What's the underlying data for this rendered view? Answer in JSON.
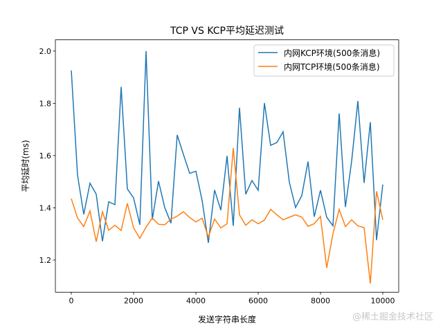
{
  "chart_data": {
    "type": "line",
    "title": "TCP VS KCP平均延迟测试",
    "xlabel": "发送字符串长度",
    "ylabel": "平均延时(ms)",
    "xlim": [
      -511,
      10511
    ],
    "ylim": [
      1.077,
      2.043
    ],
    "xticks": [
      0,
      2000,
      4000,
      6000,
      8000,
      10000
    ],
    "yticks": [
      1.2,
      1.4,
      1.6,
      1.8,
      2.0
    ],
    "ytick_labels": [
      "1.2",
      "1.4",
      "1.6",
      "1.8",
      "2.0"
    ],
    "grid": false,
    "legend_position": "top-right",
    "x": [
      0,
      200,
      400,
      600,
      800,
      1000,
      1200,
      1400,
      1600,
      1800,
      2000,
      2200,
      2400,
      2600,
      2800,
      3000,
      3200,
      3400,
      3600,
      3800,
      4000,
      4200,
      4400,
      4600,
      4800,
      5000,
      5200,
      5400,
      5600,
      5800,
      6000,
      6200,
      6400,
      6600,
      6800,
      7000,
      7200,
      7400,
      7600,
      7800,
      8000,
      8200,
      8400,
      8600,
      8800,
      9000,
      9200,
      9400,
      9600,
      9800,
      10000
    ],
    "series": [
      {
        "name": "内网KCP环境(500条消息)",
        "color": "#1f77b4",
        "values": [
          1.926,
          1.525,
          1.375,
          1.494,
          1.452,
          1.272,
          1.423,
          1.412,
          1.863,
          1.472,
          1.438,
          1.335,
          2.0,
          1.355,
          1.502,
          1.401,
          1.341,
          1.679,
          1.604,
          1.532,
          1.54,
          1.428,
          1.266,
          1.468,
          1.391,
          1.599,
          1.331,
          1.783,
          1.452,
          1.504,
          1.467,
          1.801,
          1.639,
          1.65,
          1.691,
          1.498,
          1.401,
          1.447,
          1.577,
          1.366,
          1.467,
          1.364,
          1.331,
          1.761,
          1.403,
          1.578,
          1.809,
          1.495,
          1.728,
          1.276,
          1.489
        ]
      },
      {
        "name": "内网TCP环境(500条消息)",
        "color": "#ff7f0e",
        "values": [
          1.435,
          1.361,
          1.328,
          1.388,
          1.27,
          1.385,
          1.314,
          1.333,
          1.313,
          1.417,
          1.323,
          1.283,
          1.326,
          1.361,
          1.337,
          1.335,
          1.357,
          1.368,
          1.385,
          1.363,
          1.346,
          1.36,
          1.288,
          1.357,
          1.323,
          1.339,
          1.629,
          1.373,
          1.333,
          1.354,
          1.339,
          1.353,
          1.394,
          1.373,
          1.354,
          1.364,
          1.373,
          1.364,
          1.329,
          1.339,
          1.367,
          1.17,
          1.3,
          1.394,
          1.328,
          1.354,
          1.331,
          1.324,
          1.11,
          1.463,
          1.354
        ]
      }
    ]
  },
  "watermark": "@稀土掘金技术社区"
}
